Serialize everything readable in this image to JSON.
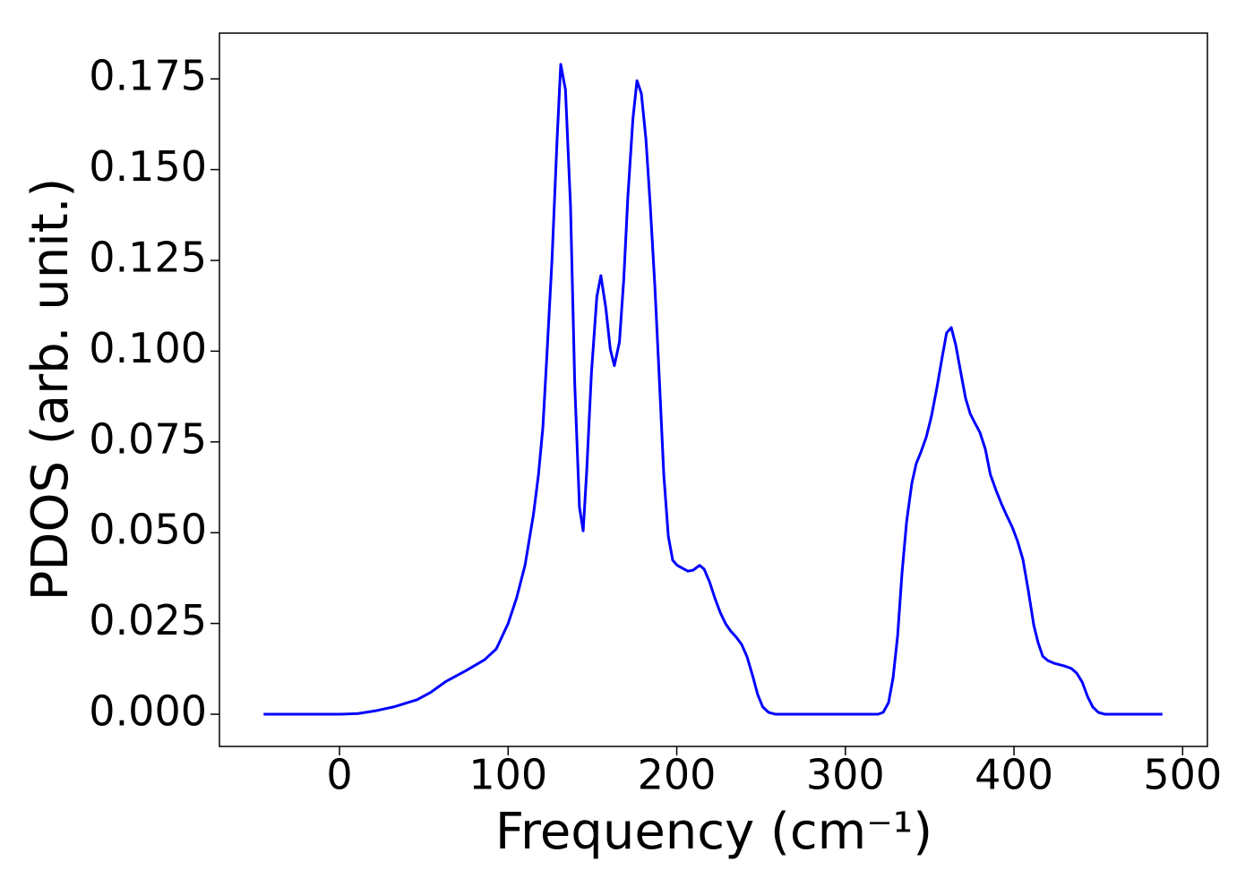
{
  "chart_data": {
    "type": "line",
    "xlabel": "Frequency (cm⁻¹)",
    "ylabel": "PDOS (arb. unit.)",
    "x": [
      -45,
      0,
      11,
      22,
      32,
      46,
      54,
      63,
      75,
      86,
      93,
      97,
      100,
      105,
      110,
      115,
      118,
      120.6,
      123,
      126,
      129,
      131.2,
      134,
      137,
      139.5,
      142.3,
      144.5,
      146.6,
      149.4,
      152.6,
      155,
      157.9,
      160.6,
      163,
      166,
      168.6,
      171,
      174,
      176.4,
      179,
      181.7,
      184.3,
      187,
      189.6,
      192.3,
      195,
      197.6,
      200.3,
      203.4,
      206.6,
      209.8,
      213.5,
      216.2,
      219.4,
      222.6,
      225.8,
      229,
      232,
      235.3,
      238.5,
      241.7,
      245,
      248,
      251,
      254.5,
      258.7,
      319.3,
      322.4,
      325.6,
      328.3,
      331,
      333.6,
      336.3,
      339.4,
      342,
      344.8,
      348,
      351,
      354.3,
      357.5,
      360,
      362.8,
      365.4,
      368.6,
      371.3,
      374,
      376.6,
      379.8,
      383,
      386,
      389.4,
      392.5,
      395.7,
      399,
      402,
      405.3,
      408.5,
      411.7,
      414.3,
      417,
      420,
      424,
      429.8,
      434,
      437.2,
      440.4,
      443.6,
      446.7,
      450,
      454,
      488
    ],
    "series": [
      {
        "color": "#0000ff",
        "values": [
          0,
          0,
          0.0002,
          0.001,
          0.002,
          0.004,
          0.006,
          0.009,
          0.012,
          0.015,
          0.018,
          0.022,
          0.025,
          0.032,
          0.041,
          0.055,
          0.066,
          0.079,
          0.099,
          0.125,
          0.158,
          0.179,
          0.172,
          0.14,
          0.091,
          0.057,
          0.0505,
          0.067,
          0.094,
          0.115,
          0.1208,
          0.112,
          0.1005,
          0.096,
          0.1025,
          0.12,
          0.1425,
          0.164,
          0.1745,
          0.171,
          0.1585,
          0.14,
          0.118,
          0.093,
          0.066,
          0.049,
          0.0424,
          0.041,
          0.0402,
          0.0394,
          0.0397,
          0.041,
          0.04,
          0.0365,
          0.032,
          0.028,
          0.0249,
          0.0229,
          0.0212,
          0.0192,
          0.0158,
          0.0106,
          0.0054,
          0.002,
          0.0005,
          0,
          0,
          0.0005,
          0.0032,
          0.0101,
          0.0217,
          0.039,
          0.053,
          0.0636,
          0.069,
          0.0722,
          0.0764,
          0.082,
          0.09,
          0.0986,
          0.105,
          0.1065,
          0.1018,
          0.0937,
          0.087,
          0.0828,
          0.0804,
          0.0776,
          0.073,
          0.066,
          0.0616,
          0.058,
          0.0547,
          0.0515,
          0.0478,
          0.0426,
          0.034,
          0.0246,
          0.0197,
          0.016,
          0.0148,
          0.014,
          0.0133,
          0.0126,
          0.0113,
          0.0089,
          0.0049,
          0.002,
          0.0005,
          0,
          0
        ]
      }
    ],
    "xlim": [
      -71.2,
      514.7
    ],
    "ylim": [
      -0.00887,
      0.1876
    ],
    "xticks": [
      0,
      100,
      200,
      300,
      400,
      500
    ],
    "yticks": [
      {
        "value": 0,
        "label": "0.000"
      },
      0.025,
      {
        "value": 0.05,
        "label": "0.050"
      },
      0.075,
      {
        "value": 0.1,
        "label": "0.100"
      },
      0.125,
      {
        "value": 0.15,
        "label": "0.150"
      },
      0.175
    ]
  }
}
